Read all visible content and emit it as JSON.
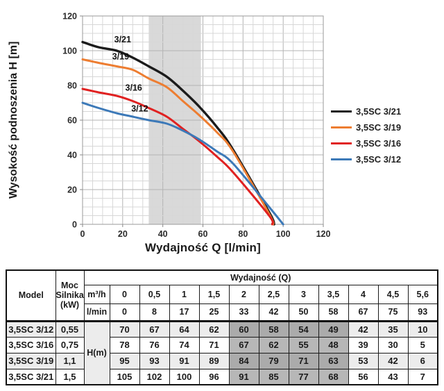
{
  "page": {
    "background": "#ffffff"
  },
  "chart_data": {
    "type": "line",
    "title": "",
    "xlabel": "Wydajność Q [l/min]",
    "ylabel": "Wysokość podnoszenia H [m]",
    "xlim": [
      0,
      120
    ],
    "ylim": [
      0,
      120
    ],
    "x_tick_step": 20,
    "y_tick_step": 20,
    "minor_grid_step": 5,
    "grid": true,
    "legend_position": "right-middle",
    "highlight_band": {
      "x_from": 33,
      "x_to": 59,
      "color": "#d9d9d9"
    },
    "x": [
      0,
      8,
      17,
      25,
      33,
      42,
      50,
      58,
      67,
      75,
      93
    ],
    "series": [
      {
        "name": "3,5SC 3/21",
        "short_label": "3/21",
        "color": "#1b1b1b",
        "stroke_width": 3.4,
        "values": [
          105,
          102,
          100,
          96,
          91,
          85,
          77,
          68,
          56,
          43,
          7
        ],
        "end_point": [
          95.5,
          0
        ],
        "label_at": [
          20,
          104.8
        ]
      },
      {
        "name": "3,5SC 3/19",
        "short_label": "3/19",
        "color": "#ED7D31",
        "stroke_width": 3,
        "values": [
          95,
          93,
          91,
          89,
          84,
          79,
          71,
          63,
          53,
          42,
          6
        ],
        "end_point": [
          95,
          0
        ],
        "label_at": [
          19,
          95
        ]
      },
      {
        "name": "3,5SC 3/16",
        "short_label": "3/16",
        "color": "#E02121",
        "stroke_width": 3,
        "values": [
          78,
          76,
          74,
          71,
          67,
          62,
          55,
          48,
          39,
          30,
          5
        ],
        "end_point": [
          94.5,
          0
        ],
        "label_at": [
          25.5,
          77
        ]
      },
      {
        "name": "3,5SC 3/12",
        "short_label": "3/12",
        "color": "#3C79B8",
        "stroke_width": 3,
        "values": [
          70,
          67,
          64,
          62,
          60,
          58,
          54,
          49,
          42,
          35,
          10
        ],
        "end_point": [
          100,
          0
        ],
        "label_at": [
          28.5,
          65
        ]
      }
    ]
  },
  "table": {
    "model_header": "Model",
    "power_header": "Moc Silnika (kW)",
    "flow_header": "Wydajność (Q)",
    "unit_m3h": "m³/h",
    "unit_lmin": "l/min",
    "head_label": "H(m)",
    "m3h_values": [
      "0",
      "0,5",
      "1",
      "1,5",
      "2",
      "2,5",
      "3",
      "3,5",
      "4",
      "4,5",
      "5,6"
    ],
    "lmin_values": [
      "0",
      "8",
      "17",
      "25",
      "33",
      "42",
      "50",
      "58",
      "67",
      "75",
      "93"
    ],
    "highlight_columns": [
      4,
      5,
      6,
      7
    ],
    "rows": [
      {
        "model": "3,5SC 3/12",
        "power": "0,55",
        "h_values": [
          "70",
          "67",
          "64",
          "62",
          "60",
          "58",
          "54",
          "49",
          "42",
          "35",
          "10"
        ]
      },
      {
        "model": "3,5SC 3/16",
        "power": "0,75",
        "h_values": [
          "78",
          "76",
          "74",
          "71",
          "67",
          "62",
          "55",
          "48",
          "39",
          "30",
          "5"
        ]
      },
      {
        "model": "3,5SC 3/19",
        "power": "1,1",
        "h_values": [
          "95",
          "93",
          "91",
          "89",
          "84",
          "79",
          "71",
          "63",
          "53",
          "42",
          "6"
        ]
      },
      {
        "model": "3,5SC 3/21",
        "power": "1,5",
        "h_values": [
          "105",
          "102",
          "100",
          "96",
          "91",
          "85",
          "77",
          "68",
          "56",
          "43",
          "7"
        ]
      }
    ]
  }
}
